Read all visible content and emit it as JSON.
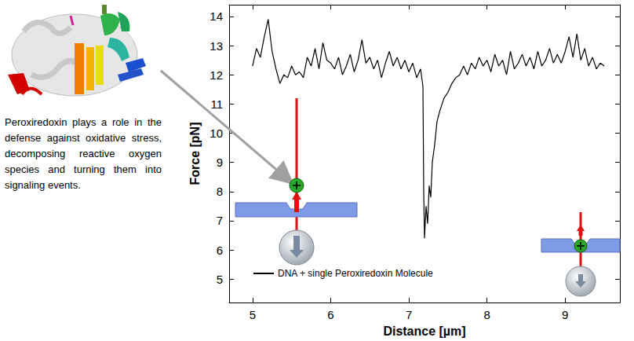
{
  "caption": "Peroxiredoxin plays a role in the defense against oxidative stress, decomposing reactive oxygen species and turning them into signaling events.",
  "chart_data": {
    "type": "line",
    "xlabel": "Distance [µm]",
    "ylabel": "Force [pN]",
    "x": [
      5.0,
      5.05,
      5.1,
      5.15,
      5.2,
      5.25,
      5.3,
      5.35,
      5.4,
      5.45,
      5.5,
      5.55,
      5.6,
      5.65,
      5.7,
      5.75,
      5.8,
      5.85,
      5.9,
      5.95,
      6.0,
      6.05,
      6.1,
      6.15,
      6.2,
      6.25,
      6.3,
      6.35,
      6.4,
      6.45,
      6.5,
      6.55,
      6.6,
      6.65,
      6.7,
      6.75,
      6.8,
      6.85,
      6.9,
      6.95,
      7.0,
      7.05,
      7.1,
      7.15,
      7.18,
      7.19,
      7.2,
      7.22,
      7.24,
      7.26,
      7.28,
      7.3,
      7.33,
      7.36,
      7.4,
      7.45,
      7.5,
      7.55,
      7.6,
      7.65,
      7.7,
      7.75,
      7.8,
      7.85,
      7.9,
      7.95,
      8.0,
      8.05,
      8.1,
      8.15,
      8.2,
      8.25,
      8.3,
      8.35,
      8.4,
      8.45,
      8.5,
      8.55,
      8.6,
      8.65,
      8.7,
      8.75,
      8.8,
      8.85,
      8.9,
      8.95,
      9.0,
      9.05,
      9.1,
      9.15,
      9.2,
      9.25,
      9.3,
      9.35,
      9.4,
      9.45,
      9.5
    ],
    "series": [
      {
        "name": "DNA + single Peroxiredoxin Molecule",
        "color": "#000000",
        "values": [
          12.3,
          12.9,
          12.6,
          13.3,
          13.9,
          12.8,
          12.2,
          11.7,
          12.0,
          11.9,
          12.3,
          12.0,
          12.1,
          11.9,
          12.6,
          12.3,
          12.9,
          12.2,
          13.1,
          12.5,
          12.4,
          12.2,
          12.6,
          12.0,
          12.3,
          12.7,
          12.1,
          12.5,
          13.2,
          12.4,
          12.6,
          12.2,
          12.5,
          11.9,
          12.4,
          12.8,
          12.3,
          12.6,
          12.2,
          12.5,
          12.1,
          12.4,
          11.9,
          12.2,
          11.6,
          8.0,
          6.4,
          7.5,
          6.9,
          8.2,
          7.8,
          9.0,
          9.6,
          10.4,
          10.8,
          11.2,
          11.4,
          11.7,
          11.9,
          12.0,
          12.3,
          12.0,
          12.4,
          12.2,
          12.6,
          12.3,
          12.5,
          12.1,
          12.7,
          12.3,
          12.5,
          12.0,
          12.8,
          12.2,
          12.4,
          12.7,
          12.3,
          12.6,
          12.2,
          12.8,
          12.3,
          12.5,
          12.9,
          12.4,
          12.7,
          12.4,
          12.8,
          13.3,
          12.6,
          13.4,
          12.5,
          12.9,
          12.3,
          12.6,
          12.2,
          12.4,
          12.3
        ]
      }
    ],
    "xlim": [
      4.7,
      9.7
    ],
    "xticks": [
      5,
      6,
      7,
      8,
      9
    ],
    "ylim": [
      4.2,
      14.4
    ],
    "yticks": [
      5,
      6,
      7,
      8,
      9,
      10,
      11,
      12,
      13,
      14
    ],
    "legend": "bottom-left",
    "grid": false
  }
}
